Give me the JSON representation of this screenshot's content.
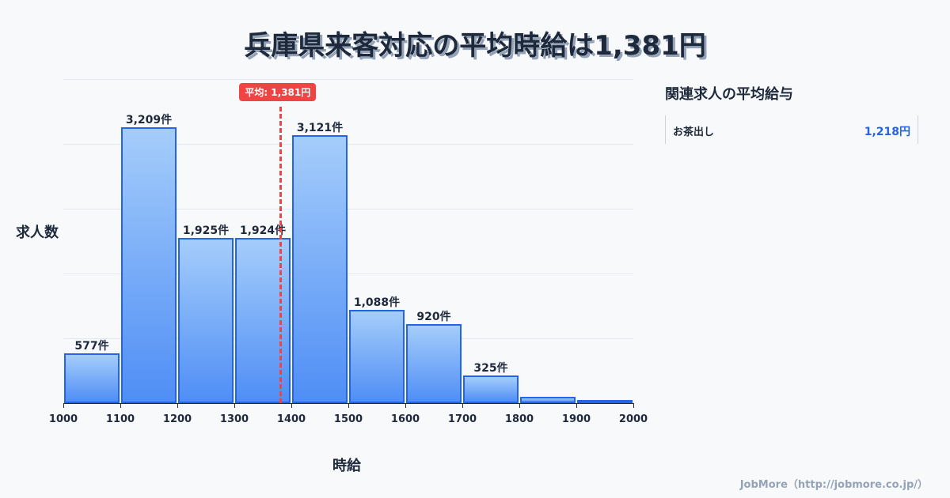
{
  "header": {
    "title": "兵庫県来客対応の平均時給は1,381円"
  },
  "chart_data": {
    "type": "bar",
    "title": "兵庫県来客対応の平均時給は1,381円",
    "xlabel": "時給",
    "ylabel": "求人数",
    "categories": [
      "1000-1100",
      "1100-1200",
      "1200-1300",
      "1300-1400",
      "1400-1500",
      "1500-1600",
      "1600-1700",
      "1700-1800",
      "1800-1900",
      "1900-2000"
    ],
    "values": [
      577,
      3209,
      1925,
      1924,
      3121,
      1088,
      920,
      325,
      75,
      25
    ],
    "bar_labels": [
      "577件",
      "3,209件",
      "1,925件",
      "1,924件",
      "3,121件",
      "1,088件",
      "920件",
      "325件",
      "",
      ""
    ],
    "x_ticks": [
      "1000",
      "1100",
      "1200",
      "1300",
      "1400",
      "1500",
      "1600",
      "1700",
      "1800",
      "1900",
      "2000"
    ],
    "xlim": [
      1000,
      2000
    ],
    "ylim": [
      0,
      3770
    ],
    "grid": true,
    "average": {
      "value": 1381,
      "label": "平均: 1,381円",
      "color": "#ef4444"
    },
    "bar_color": "#2563eb"
  },
  "sidebar": {
    "title": "関連求人の平均給与",
    "items": [
      {
        "name": "お茶出し",
        "value": "1,218円"
      }
    ]
  },
  "footer": {
    "credit": "JobMore（http://jobmore.co.jp/）"
  }
}
